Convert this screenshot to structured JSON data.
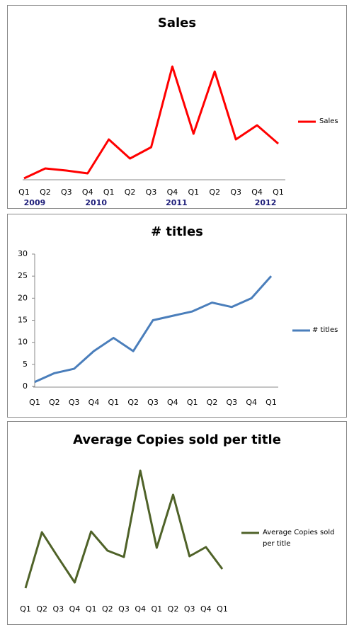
{
  "chart_data": [
    {
      "type": "line",
      "title": "Sales",
      "categories": [
        "Q1",
        "Q2",
        "Q3",
        "Q4",
        "Q1",
        "Q2",
        "Q3",
        "Q4",
        "Q1",
        "Q2",
        "Q3",
        "Q4",
        "Q1"
      ],
      "groups": [
        "2009",
        "2010",
        "2011",
        "2012"
      ],
      "series": [
        {
          "name": "Sales",
          "color": "#ff0000",
          "values": [
            1,
            15,
            12,
            8,
            56,
            29,
            45,
            159,
            64,
            152,
            56,
            76,
            50
          ]
        }
      ],
      "ylim": [
        0,
        170
      ]
    },
    {
      "type": "line",
      "title": "# titles",
      "categories": [
        "Q1",
        "Q2",
        "Q3",
        "Q4",
        "Q1",
        "Q2",
        "Q3",
        "Q4",
        "Q1",
        "Q2",
        "Q3",
        "Q4",
        "Q1"
      ],
      "series": [
        {
          "name": "# titles",
          "color": "#4a7ebb",
          "values": [
            1,
            3,
            4,
            8,
            11,
            8,
            15,
            16,
            17,
            19,
            18,
            20,
            25
          ]
        }
      ],
      "ylim": [
        0,
        30
      ],
      "yticks": [
        0,
        5,
        10,
        15,
        20,
        25,
        30
      ]
    },
    {
      "type": "line",
      "title": "Average Copies sold per title",
      "categories": [
        "Q1",
        "Q2",
        "Q3",
        "Q4",
        "Q1",
        "Q2",
        "Q3",
        "Q4",
        "Q1",
        "Q2",
        "Q3",
        "Q4",
        "Q1"
      ],
      "series": [
        {
          "name": "Average Copies sold per title",
          "color": "#4f6228",
          "values": [
            10,
            89,
            53,
            18,
            90,
            63,
            54,
            176,
            67,
            142,
            55,
            68,
            37
          ]
        }
      ],
      "ylim": [
        0,
        190
      ]
    }
  ]
}
